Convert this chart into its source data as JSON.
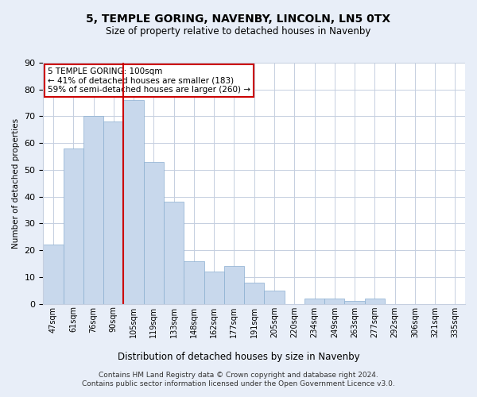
{
  "title": "5, TEMPLE GORING, NAVENBY, LINCOLN, LN5 0TX",
  "subtitle": "Size of property relative to detached houses in Navenby",
  "xlabel": "Distribution of detached houses by size in Navenby",
  "ylabel": "Number of detached properties",
  "categories": [
    "47sqm",
    "61sqm",
    "76sqm",
    "90sqm",
    "105sqm",
    "119sqm",
    "133sqm",
    "148sqm",
    "162sqm",
    "177sqm",
    "191sqm",
    "205sqm",
    "220sqm",
    "234sqm",
    "249sqm",
    "263sqm",
    "277sqm",
    "292sqm",
    "306sqm",
    "321sqm",
    "335sqm"
  ],
  "values": [
    22,
    58,
    70,
    68,
    76,
    53,
    38,
    16,
    12,
    14,
    8,
    5,
    0,
    2,
    2,
    1,
    2,
    0,
    0,
    0,
    0
  ],
  "bar_color": "#c8d8ec",
  "bar_edge_color": "#8aaed0",
  "highlight_index": 4,
  "highlight_line_color": "#cc0000",
  "ylim": [
    0,
    90
  ],
  "yticks": [
    0,
    10,
    20,
    30,
    40,
    50,
    60,
    70,
    80,
    90
  ],
  "annotation_text": "5 TEMPLE GORING: 100sqm\n← 41% of detached houses are smaller (183)\n59% of semi-detached houses are larger (260) →",
  "annotation_box_color": "#cc0000",
  "footer": "Contains HM Land Registry data © Crown copyright and database right 2024.\nContains public sector information licensed under the Open Government Licence v3.0.",
  "bg_color": "#e8eef8",
  "plot_bg_color": "#ffffff",
  "grid_color": "#c5cfe0"
}
